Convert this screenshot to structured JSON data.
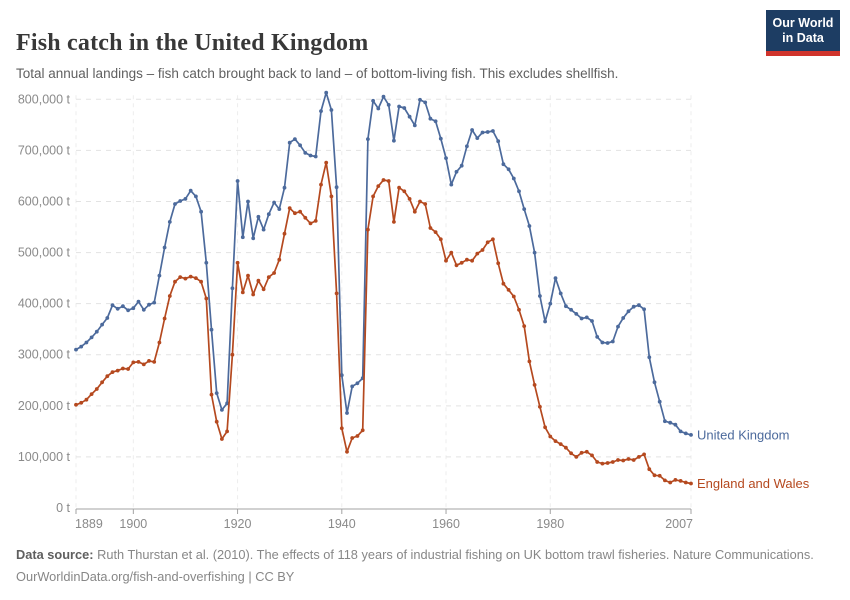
{
  "header": {
    "title": "Fish catch in the United Kingdom",
    "subtitle": "Total annual landings – fish catch brought back to land – of bottom-living fish. This excludes shellfish."
  },
  "logo": {
    "line1": "Our World",
    "line2": "in Data",
    "bg_color": "#1d3d63",
    "accent_color": "#d0342c"
  },
  "chart_data": {
    "type": "line",
    "title": "Fish catch in the United Kingdom",
    "unit": "t",
    "xlabel": "",
    "ylabel": "",
    "grid": "dashed",
    "legend_position": "end-of-line",
    "xlim": [
      1889,
      2007
    ],
    "ylim": [
      0,
      800000
    ],
    "xticks": [
      {
        "value": 1889,
        "label": "1889"
      },
      {
        "value": 1900,
        "label": "1900"
      },
      {
        "value": 1920,
        "label": "1920"
      },
      {
        "value": 1940,
        "label": "1940"
      },
      {
        "value": 1960,
        "label": "1960"
      },
      {
        "value": 1980,
        "label": "1980"
      },
      {
        "value": 2007,
        "label": "2007"
      }
    ],
    "yticks": [
      {
        "value": 0,
        "label": "0 t"
      },
      {
        "value": 100000,
        "label": "100,000 t"
      },
      {
        "value": 200000,
        "label": "200,000 t"
      },
      {
        "value": 300000,
        "label": "300,000 t"
      },
      {
        "value": 400000,
        "label": "400,000 t"
      },
      {
        "value": 500000,
        "label": "500,000 t"
      },
      {
        "value": 600000,
        "label": "600,000 t"
      },
      {
        "value": 700000,
        "label": "700,000 t"
      },
      {
        "value": 800000,
        "label": "800,000 t"
      }
    ],
    "x": [
      1889,
      1890,
      1891,
      1892,
      1893,
      1894,
      1895,
      1896,
      1897,
      1898,
      1899,
      1900,
      1901,
      1902,
      1903,
      1904,
      1905,
      1906,
      1907,
      1908,
      1909,
      1910,
      1911,
      1912,
      1913,
      1914,
      1915,
      1916,
      1917,
      1918,
      1919,
      1920,
      1921,
      1922,
      1923,
      1924,
      1925,
      1926,
      1927,
      1928,
      1929,
      1930,
      1931,
      1932,
      1933,
      1934,
      1935,
      1936,
      1937,
      1938,
      1939,
      1940,
      1941,
      1942,
      1943,
      1944,
      1945,
      1946,
      1947,
      1948,
      1949,
      1950,
      1951,
      1952,
      1953,
      1954,
      1955,
      1956,
      1957,
      1958,
      1959,
      1960,
      1961,
      1962,
      1963,
      1964,
      1965,
      1966,
      1967,
      1968,
      1969,
      1970,
      1971,
      1972,
      1973,
      1974,
      1975,
      1976,
      1977,
      1978,
      1979,
      1980,
      1981,
      1982,
      1983,
      1984,
      1985,
      1986,
      1987,
      1988,
      1989,
      1990,
      1991,
      1992,
      1993,
      1994,
      1995,
      1996,
      1997,
      1998,
      1999,
      2000,
      2001,
      2002,
      2003,
      2004,
      2005,
      2006,
      2007
    ],
    "series": [
      {
        "name": "United Kingdom",
        "color": "#4c6a9c",
        "values": [
          310000,
          316000,
          324000,
          334000,
          345000,
          359000,
          372000,
          397000,
          390000,
          395000,
          387000,
          391000,
          404000,
          388000,
          398000,
          402000,
          455000,
          510000,
          560000,
          595000,
          601000,
          605000,
          621000,
          610000,
          580000,
          480000,
          349000,
          225000,
          192000,
          205000,
          430000,
          640000,
          530000,
          600000,
          528000,
          570000,
          545000,
          575000,
          598000,
          585000,
          627000,
          715000,
          722000,
          710000,
          695000,
          690000,
          688000,
          777000,
          813000,
          779000,
          628000,
          260000,
          186000,
          238000,
          244000,
          254000,
          722000,
          797000,
          782000,
          805000,
          789000,
          719000,
          786000,
          783000,
          766000,
          749000,
          799000,
          794000,
          762000,
          757000,
          723000,
          685000,
          633000,
          658000,
          670000,
          708000,
          740000,
          724000,
          735000,
          736000,
          738000,
          718000,
          673000,
          663000,
          645000,
          620000,
          585000,
          552000,
          500000,
          415000,
          365000,
          400000,
          450000,
          420000,
          395000,
          388000,
          380000,
          371000,
          373000,
          366000,
          335000,
          324000,
          323000,
          326000,
          355000,
          372000,
          385000,
          394000,
          397000,
          389000,
          295000,
          246000,
          208000,
          170000,
          167000,
          163000,
          150000,
          146000,
          143000
        ]
      },
      {
        "name": "England and Wales",
        "color": "#b5491f",
        "values": [
          202000,
          206000,
          212000,
          223000,
          233000,
          246000,
          258000,
          266000,
          269000,
          273000,
          272000,
          285000,
          286000,
          281000,
          288000,
          286000,
          324000,
          371000,
          415000,
          443000,
          452000,
          449000,
          453000,
          450000,
          443000,
          410000,
          222000,
          169000,
          135000,
          150000,
          300000,
          480000,
          422000,
          455000,
          418000,
          445000,
          428000,
          452000,
          460000,
          486000,
          537000,
          587000,
          577000,
          580000,
          568000,
          557000,
          562000,
          633000,
          676000,
          610000,
          420000,
          156000,
          110000,
          137000,
          141000,
          152000,
          545000,
          610000,
          630000,
          642000,
          640000,
          560000,
          627000,
          620000,
          605000,
          580000,
          600000,
          595000,
          548000,
          540000,
          526000,
          484000,
          500000,
          475000,
          480000,
          486000,
          484000,
          498000,
          505000,
          520000,
          526000,
          479000,
          439000,
          427000,
          414000,
          388000,
          356000,
          287000,
          241000,
          198000,
          158000,
          140000,
          131000,
          125000,
          118000,
          107000,
          100000,
          108000,
          110000,
          103000,
          90000,
          87000,
          88000,
          90000,
          94000,
          93000,
          96000,
          94000,
          100000,
          105000,
          76000,
          64000,
          63000,
          54000,
          50000,
          55000,
          53000,
          50000,
          48000
        ]
      }
    ]
  },
  "footer": {
    "source_label": "Data source:",
    "source_text": " Ruth Thurstan et al. (2010). The effects of 118 years of industrial fishing on UK bottom trawl fisheries. Nature Communications.",
    "link": "OurWorldinData.org/fish-and-overfishing",
    "license": " | CC BY"
  }
}
